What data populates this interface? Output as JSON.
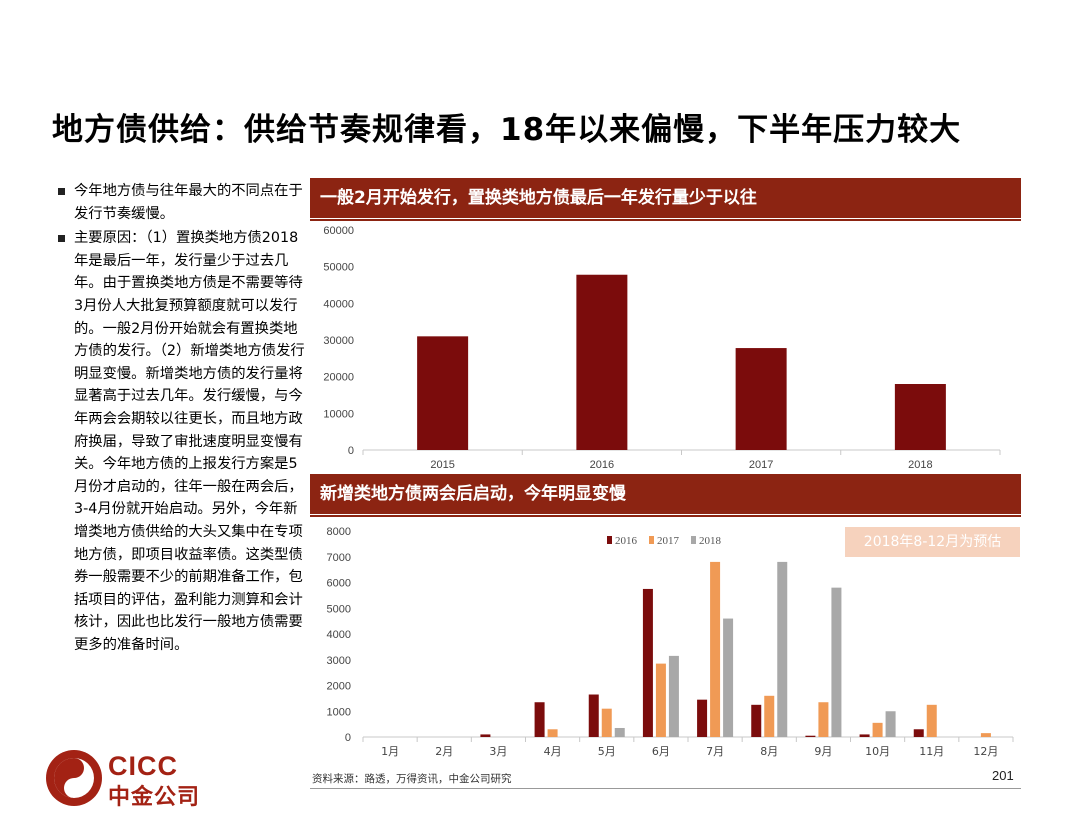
{
  "page": {
    "title": "地方债供给：供给节奏规律看，18年以来偏慢，下半年压力较大",
    "bullets": [
      "今年地方债与往年最大的不同点在于发行节奏缓慢。",
      "主要原因：（1）置换类地方债2018年是最后一年，发行量少于过去几年。由于置换类地方债是不需要等待3月份人大批复预算额度就可以发行的。一般2月份开始就会有置换类地方债的发行。（2）新增类地方债发行明显变慢。新增类地方债的发行量将显著高于过去几年。发行缓慢，与今年两会会期较以往更长，而且地方政府换届，导致了审批速度明显变慢有关。今年地方债的上报发行方案是5月份才启动的，往年一般在两会后，3-4月份就开始启动。另外，今年新增类地方债供给的大头又集中在专项地方债，即项目收益率债。这类型债券一般需要不少的前期准备工作，包括项目的评估，盈利能力测算和会计核计，因此也比发行一般地方债需要更多的准备时间。"
    ],
    "source": "资料来源：路透，万得资讯，中金公司研究",
    "page_number": "201",
    "logo": {
      "en": "CICC",
      "cn": "中金公司"
    },
    "colors": {
      "brand": "#8c2412",
      "s2016": "#7b0c0c",
      "s2017": "#f09a55",
      "s2018": "#a8a8a8"
    }
  },
  "chart_data": [
    {
      "type": "bar",
      "title": "一般2月开始发行，置换类地方债最后一年发行量少于以往",
      "categories": [
        "2015",
        "2016",
        "2017",
        "2018"
      ],
      "values": [
        31000,
        47800,
        27800,
        18000
      ],
      "ylim": [
        0,
        60000
      ],
      "yticks": [
        0,
        10000,
        20000,
        30000,
        40000,
        50000,
        60000
      ],
      "grid": false
    },
    {
      "type": "bar",
      "title": "新增类地方债两会后启动，今年明显变慢",
      "categories": [
        "1月",
        "2月",
        "3月",
        "4月",
        "5月",
        "6月",
        "7月",
        "8月",
        "9月",
        "10月",
        "11月",
        "12月"
      ],
      "series": [
        {
          "name": "2016",
          "values": [
            0,
            0,
            100,
            1350,
            1650,
            5750,
            1450,
            1250,
            50,
            100,
            300,
            0
          ]
        },
        {
          "name": "2017",
          "values": [
            0,
            0,
            0,
            300,
            1100,
            2850,
            6800,
            1600,
            1350,
            550,
            1250,
            150
          ]
        },
        {
          "name": "2018",
          "values": [
            0,
            0,
            0,
            0,
            350,
            3150,
            4600,
            6800,
            5800,
            1000,
            0,
            0
          ]
        }
      ],
      "ylim": [
        0,
        8000
      ],
      "yticks": [
        0,
        1000,
        2000,
        3000,
        4000,
        5000,
        6000,
        7000,
        8000
      ],
      "legend_position": "top-center",
      "annotation": "2018年8-12月为预估",
      "grid": false
    }
  ]
}
